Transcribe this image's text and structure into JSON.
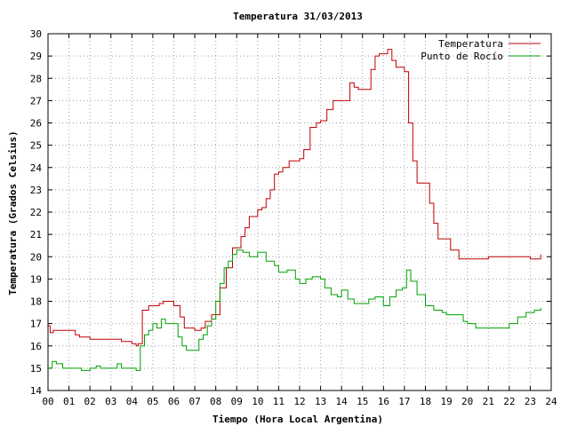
{
  "chart_data": {
    "type": "line",
    "title": "Temperatura 31/03/2013",
    "xlabel": "Tiempo (Hora Local Argentina)",
    "ylabel": "Temperatura (Grados Celsius)",
    "xlim": [
      0,
      24
    ],
    "ylim": [
      14,
      30
    ],
    "grid": true,
    "legend_position": "top-right",
    "xticks": [
      "00",
      "01",
      "02",
      "03",
      "04",
      "05",
      "06",
      "07",
      "08",
      "09",
      "10",
      "11",
      "12",
      "13",
      "14",
      "15",
      "16",
      "17",
      "18",
      "19",
      "20",
      "21",
      "22",
      "23",
      "24"
    ],
    "yticks": [
      14,
      15,
      16,
      17,
      18,
      19,
      20,
      21,
      22,
      23,
      24,
      25,
      26,
      27,
      28,
      29,
      30
    ],
    "series": [
      {
        "name": "Temperatura",
        "color": "#c00000",
        "x": [
          0.0,
          0.1,
          0.25,
          0.5,
          1.0,
          1.3,
          1.5,
          2.0,
          2.5,
          3.0,
          3.5,
          4.0,
          4.2,
          4.3,
          4.5,
          4.8,
          5.0,
          5.3,
          5.5,
          6.0,
          6.3,
          6.5,
          7.0,
          7.3,
          7.5,
          7.8,
          8.0,
          8.2,
          8.5,
          8.8,
          9.0,
          9.2,
          9.4,
          9.6,
          10.0,
          10.2,
          10.4,
          10.6,
          10.8,
          11.0,
          11.2,
          11.5,
          12.0,
          12.2,
          12.5,
          12.8,
          13.0,
          13.3,
          13.6,
          14.0,
          14.4,
          14.6,
          14.8,
          15.0,
          15.4,
          15.6,
          15.8,
          16.0,
          16.2,
          16.4,
          16.6,
          17.0,
          17.2,
          17.4,
          17.6,
          18.0,
          18.2,
          18.4,
          18.6,
          19.0,
          19.2,
          19.6,
          20.0,
          20.4,
          21.0,
          21.5,
          22.0,
          22.5,
          23.0,
          23.5
        ],
        "y": [
          16.9,
          16.6,
          16.7,
          16.7,
          16.7,
          16.5,
          16.4,
          16.3,
          16.3,
          16.3,
          16.2,
          16.1,
          16.0,
          16.1,
          17.6,
          17.8,
          17.8,
          17.9,
          18.0,
          17.8,
          17.3,
          16.8,
          16.7,
          16.8,
          17.1,
          17.4,
          17.4,
          18.6,
          19.5,
          20.4,
          20.4,
          20.9,
          21.3,
          21.8,
          22.1,
          22.2,
          22.6,
          23.0,
          23.7,
          23.8,
          24.0,
          24.3,
          24.4,
          24.8,
          25.8,
          26.0,
          26.1,
          26.6,
          27.0,
          27.0,
          27.8,
          27.6,
          27.5,
          27.5,
          28.4,
          29.0,
          29.1,
          29.1,
          29.3,
          28.8,
          28.5,
          28.3,
          26.0,
          24.3,
          23.3,
          23.3,
          22.4,
          21.5,
          20.8,
          20.8,
          20.3,
          19.9,
          19.9,
          19.9,
          20.0,
          20.0,
          20.0,
          20.0,
          19.9,
          20.1
        ]
      },
      {
        "name": "Punto de Rocío",
        "color": "#00a000",
        "x": [
          0.0,
          0.2,
          0.4,
          0.7,
          1.0,
          1.3,
          1.6,
          2.0,
          2.3,
          2.5,
          2.7,
          3.0,
          3.3,
          3.5,
          3.7,
          4.0,
          4.2,
          4.4,
          4.6,
          4.8,
          5.0,
          5.2,
          5.4,
          5.6,
          6.0,
          6.2,
          6.4,
          6.6,
          7.0,
          7.2,
          7.4,
          7.6,
          7.8,
          8.0,
          8.2,
          8.4,
          8.6,
          8.8,
          9.0,
          9.3,
          9.6,
          10.0,
          10.4,
          10.8,
          11.0,
          11.4,
          11.8,
          12.0,
          12.3,
          12.6,
          13.0,
          13.2,
          13.5,
          13.8,
          14.0,
          14.3,
          14.6,
          15.0,
          15.3,
          15.6,
          16.0,
          16.3,
          16.6,
          16.9,
          17.1,
          17.3,
          17.6,
          18.0,
          18.4,
          18.8,
          19.0,
          19.4,
          19.8,
          20.0,
          20.4,
          21.0,
          21.5,
          22.0,
          22.4,
          22.8,
          23.2,
          23.5
        ],
        "y": [
          15.0,
          15.3,
          15.2,
          15.0,
          15.0,
          15.0,
          14.9,
          15.0,
          15.1,
          15.0,
          15.0,
          15.0,
          15.2,
          15.0,
          15.0,
          15.0,
          14.9,
          16.0,
          16.5,
          16.7,
          17.0,
          16.8,
          17.2,
          17.0,
          17.0,
          16.4,
          16.0,
          15.8,
          15.8,
          16.3,
          16.5,
          16.9,
          17.2,
          18.0,
          18.8,
          19.5,
          19.8,
          20.1,
          20.3,
          20.2,
          20.0,
          20.2,
          19.8,
          19.6,
          19.3,
          19.4,
          19.0,
          18.8,
          19.0,
          19.1,
          19.0,
          18.6,
          18.3,
          18.2,
          18.5,
          18.1,
          17.9,
          17.9,
          18.1,
          18.2,
          17.8,
          18.2,
          18.5,
          18.6,
          19.4,
          18.9,
          18.3,
          17.8,
          17.6,
          17.5,
          17.4,
          17.4,
          17.1,
          17.0,
          16.8,
          16.8,
          16.8,
          17.0,
          17.3,
          17.5,
          17.6,
          17.7
        ]
      }
    ]
  }
}
